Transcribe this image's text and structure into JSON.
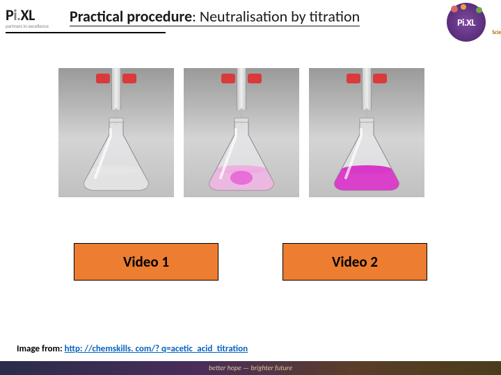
{
  "header": {
    "logo_left": {
      "brand_pre": "P",
      "brand_dot": "i.",
      "brand_post": "XL",
      "tagline": "partners in excellence"
    },
    "title_bold": "Practical procedure",
    "title_rest": ": Neutralisation by titration",
    "logo_right": {
      "brand": "Pi.XL",
      "subject": "Science"
    }
  },
  "flasks": {
    "bg_gradient_top": "#9a9a9a",
    "bg_gradient_bottom": "#c0c0c0",
    "stopcock_color": "#d93a3a",
    "items": [
      {
        "liquid_color": "#e8e8e8",
        "liquid_opacity": 0.5
      },
      {
        "liquid_color": "#f0a8e0",
        "liquid_opacity": 0.7,
        "spot": true
      },
      {
        "liquid_color": "#d838c8",
        "liquid_opacity": 0.95
      }
    ]
  },
  "buttons": {
    "video1": "Video 1",
    "video2": "Video 2",
    "bg": "#ed7d31"
  },
  "credit": {
    "prefix": "Image from: ",
    "url": "http: //chemskills. com/? q=acetic_acid_titration"
  },
  "footer": {
    "motto": "better hope — brighter future"
  }
}
